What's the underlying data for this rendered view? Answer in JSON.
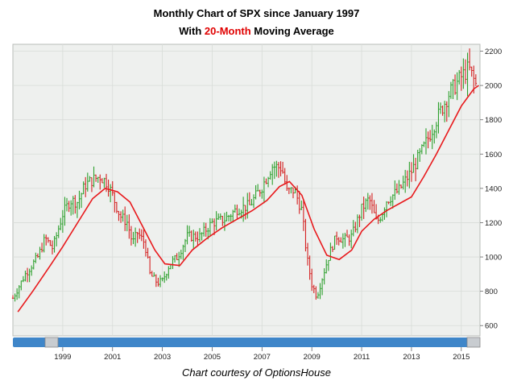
{
  "title": {
    "prefix": "Monthly Chart of SPX since January 1997",
    "line2_before": "With ",
    "line2_accent": "20-Month",
    "line2_after": " Moving Average"
  },
  "credit": "Chart courtesy of OptionsHouse",
  "colors": {
    "up": "#2ea02e",
    "down": "#d42020",
    "ma": "#e8191c",
    "background": "#eef0ee",
    "grid": "#d8dcd8",
    "scrollbar": "#3f86c9"
  },
  "chart_data": {
    "type": "line",
    "title": "Monthly Chart of SPX since January 1997",
    "subtitle": "With 20-Month Moving Average",
    "x_ticks": [
      "1999",
      "2001",
      "2003",
      "2005",
      "2007",
      "2009",
      "2011",
      "2013",
      "2015"
    ],
    "y_ticks": [
      600,
      800,
      1000,
      1200,
      1400,
      1600,
      1800,
      2000,
      2200
    ],
    "xlim": [
      1997.0,
      2015.75
    ],
    "ylim": [
      540,
      2240
    ],
    "grid": true,
    "series": [
      {
        "name": "SPX",
        "style": "ohlc-bars",
        "x": [
          1997.0,
          1997.5,
          1998.0,
          1998.3,
          1998.6,
          1998.8,
          1999.0,
          1999.3,
          1999.6,
          1999.9,
          2000.2,
          2000.5,
          2000.8,
          2001.0,
          2001.3,
          2001.6,
          2001.8,
          2002.0,
          2002.3,
          2002.5,
          2002.8,
          2003.0,
          2003.3,
          2003.6,
          2004.0,
          2004.5,
          2005.0,
          2005.5,
          2006.0,
          2006.5,
          2007.0,
          2007.4,
          2007.8,
          2008.0,
          2008.3,
          2008.6,
          2008.8,
          2009.0,
          2009.2,
          2009.5,
          2009.8,
          2010.0,
          2010.3,
          2010.6,
          2011.0,
          2011.3,
          2011.6,
          2011.8,
          2012.0,
          2012.5,
          2013.0,
          2013.5,
          2014.0,
          2014.5,
          2015.0,
          2015.3,
          2015.6
        ],
        "values": [
          760,
          900,
          1000,
          1110,
          1050,
          1150,
          1250,
          1330,
          1320,
          1420,
          1450,
          1470,
          1430,
          1360,
          1240,
          1200,
          1080,
          1140,
          1080,
          900,
          850,
          860,
          960,
          1000,
          1120,
          1120,
          1200,
          1220,
          1280,
          1300,
          1410,
          1530,
          1520,
          1380,
          1390,
          1270,
          1000,
          840,
          770,
          920,
          1060,
          1120,
          1100,
          1120,
          1280,
          1340,
          1200,
          1250,
          1330,
          1390,
          1500,
          1640,
          1800,
          1950,
          2050,
          2100,
          2000
        ]
      },
      {
        "name": "20-Month Moving Average",
        "x": [
          1997.2,
          1997.8,
          1998.5,
          1999.0,
          1999.6,
          2000.2,
          2000.7,
          2001.2,
          2001.7,
          2002.2,
          2002.7,
          2003.1,
          2003.7,
          2004.2,
          2004.8,
          2005.4,
          2006.0,
          2006.6,
          2007.2,
          2007.7,
          2008.1,
          2008.6,
          2009.1,
          2009.6,
          2010.1,
          2010.6,
          2011.0,
          2011.5,
          2012.0,
          2012.5,
          2013.0,
          2013.5,
          2014.0,
          2014.5,
          2015.0,
          2015.5,
          2015.7
        ],
        "values": [
          680,
          800,
          950,
          1060,
          1200,
          1340,
          1400,
          1380,
          1320,
          1180,
          1040,
          960,
          950,
          1040,
          1110,
          1170,
          1220,
          1270,
          1330,
          1410,
          1440,
          1360,
          1160,
          1010,
          985,
          1040,
          1150,
          1220,
          1270,
          1310,
          1350,
          1470,
          1600,
          1740,
          1880,
          1980,
          2000
        ]
      }
    ]
  }
}
